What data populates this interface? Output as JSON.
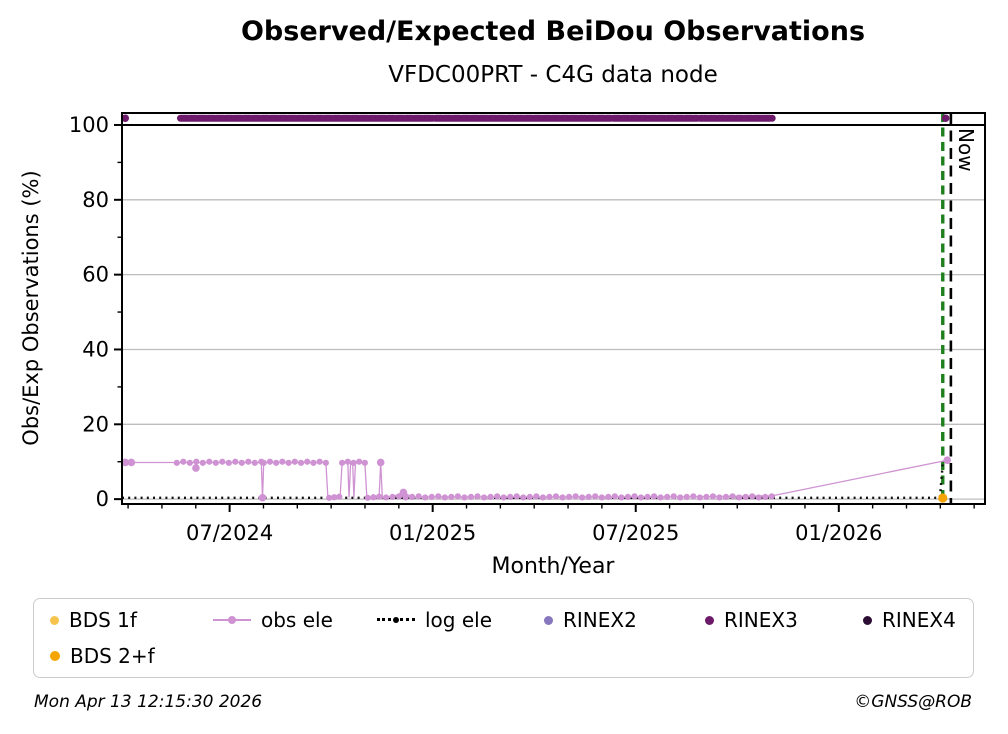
{
  "header": {
    "title": "Observed/Expected BeiDou Observations",
    "subtitle": "VFDC00PRT - C4G data node"
  },
  "footer": {
    "timestamp": "Mon Apr 13 12:15:30 2026",
    "copyright": "©GNSS@ROB"
  },
  "legend": {
    "items": [
      {
        "label": "BDS 1f",
        "marker": "dot",
        "color": "#f6c44c"
      },
      {
        "label": "obs ele",
        "marker": "line-dot",
        "color": "#cf92d2"
      },
      {
        "label": "log ele",
        "marker": "dotted-line",
        "color": "#000000"
      },
      {
        "label": "RINEX2",
        "marker": "dot",
        "color": "#8677bf"
      },
      {
        "label": "RINEX3",
        "marker": "dot",
        "color": "#6e1a6b"
      },
      {
        "label": "RINEX4",
        "marker": "dot",
        "color": "#2b0d33"
      },
      {
        "label": "BDS 2+f",
        "marker": "dot",
        "color": "#f4a403"
      }
    ]
  },
  "chart_data": {
    "type": "line",
    "title": "Observed/Expected BeiDou Observations",
    "subtitle": "VFDC00PRT - C4G data node",
    "xlabel": "Month/Year",
    "ylabel": "Obs/Exp Observations (%)",
    "xlim": [
      2024.235,
      2026.36
    ],
    "ylim": [
      -1.3,
      103.2
    ],
    "x_major_ticks": [
      {
        "x": 2024.5,
        "label": "07/2024"
      },
      {
        "x": 2025.0,
        "label": "01/2025"
      },
      {
        "x": 2025.5,
        "label": "07/2025"
      },
      {
        "x": 2026.0,
        "label": "01/2026"
      }
    ],
    "x_minor_interval_months": 1,
    "y_major_ticks": [
      0,
      20,
      40,
      60,
      80,
      100
    ],
    "y_minor_ticks": [
      10,
      30,
      50,
      70,
      90
    ],
    "gridlines_y": [
      0,
      20,
      40,
      60,
      80
    ],
    "hline_black_y": 100,
    "colors": {
      "grid": "#bdbdbd",
      "frame": "#000000"
    },
    "now_marker": {
      "label": "Now",
      "x_data_end": 2026.256,
      "data_end_color": "#1d801d",
      "x_now": 2026.276,
      "now_color": "#000000"
    },
    "series": {
      "rinex3": {
        "name": "RINEX3",
        "color": "#6e1a6b",
        "y": 101.8,
        "runs": [
          [
            2024.379,
            2025.0
          ],
          [
            2025.006,
            2025.438
          ],
          [
            2025.444,
            2025.652
          ],
          [
            2025.658,
            2025.836
          ]
        ],
        "points": [
          2024.243,
          2026.263
        ]
      },
      "obs_ele": {
        "name": "obs ele",
        "color": "#cf92d2",
        "vertices": [
          [
            2024.243,
            9.8
          ],
          [
            2024.258,
            9.8
          ],
          [
            2024.37,
            9.8
          ],
          [
            2024.415,
            9.8
          ],
          [
            2024.417,
            8.3
          ],
          [
            2024.42,
            9.8
          ],
          [
            2024.578,
            9.8
          ],
          [
            2024.581,
            0.4
          ],
          [
            2024.584,
            9.8
          ],
          [
            2024.737,
            9.8
          ],
          [
            2024.742,
            0.4
          ],
          [
            2024.772,
            0.4
          ],
          [
            2024.777,
            9.8
          ],
          [
            2024.791,
            9.8
          ],
          [
            2024.794,
            0.4
          ],
          [
            2024.798,
            9.8
          ],
          [
            2024.803,
            9.8
          ],
          [
            2024.806,
            0.4
          ],
          [
            2024.81,
            9.8
          ],
          [
            2024.833,
            9.8
          ],
          [
            2024.838,
            0.4
          ],
          [
            2024.868,
            0.4
          ],
          [
            2024.872,
            9.8
          ],
          [
            2024.876,
            0.4
          ],
          [
            2024.9,
            0.55
          ],
          [
            2024.928,
            1.8
          ],
          [
            2024.95,
            0.55
          ],
          [
            2025.3,
            0.55
          ],
          [
            2025.6,
            0.6
          ],
          [
            2025.837,
            0.9
          ],
          [
            2026.267,
            10.4
          ]
        ],
        "dot_runs": [
          [
            2024.37,
            2024.578,
            9.8
          ],
          [
            2024.584,
            2024.737,
            9.8
          ],
          [
            2024.745,
            2024.77,
            0.5
          ],
          [
            2024.777,
            2024.833,
            9.8
          ],
          [
            2024.84,
            2024.868,
            0.5
          ],
          [
            2024.885,
            2025.835,
            0.6
          ]
        ],
        "dots": [
          [
            2024.243,
            9.8
          ],
          [
            2024.258,
            9.8
          ],
          [
            2024.417,
            8.3
          ],
          [
            2024.581,
            0.4
          ],
          [
            2024.872,
            9.8
          ],
          [
            2024.928,
            1.8
          ],
          [
            2026.267,
            10.4
          ]
        ]
      },
      "log_ele": {
        "name": "log ele",
        "color": "#111111",
        "vertices": [
          [
            2024.235,
            0.35
          ],
          [
            2026.249,
            0.35
          ],
          [
            2026.256,
            9.6
          ]
        ]
      },
      "bds_2f": {
        "name": "BDS 2+f",
        "color": "#f4a403",
        "points": [
          [
            2026.256,
            0.3
          ]
        ]
      }
    }
  }
}
